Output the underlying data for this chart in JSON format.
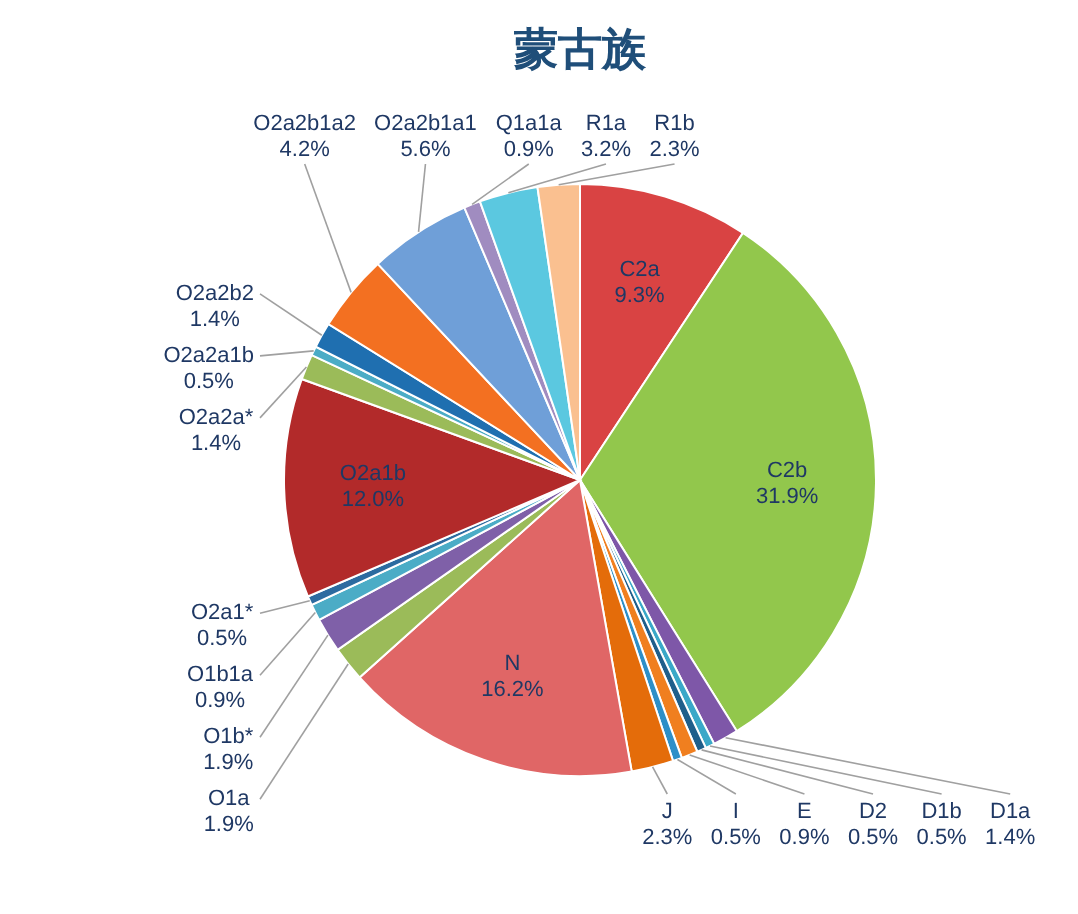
{
  "chart_data": {
    "type": "pie",
    "title": "蒙古族",
    "categories": [
      "C2a",
      "C2b",
      "D1a",
      "D1b",
      "D2",
      "E",
      "I",
      "J",
      "N",
      "O1a",
      "O1b*",
      "O1b1a",
      "O2a1*",
      "O2a1b",
      "O2a2a*",
      "O2a2a1b",
      "O2a2b2",
      "O2a2b1a2",
      "O2a2b1a1",
      "Q1a1a",
      "R1a",
      "R1b"
    ],
    "values": [
      9.3,
      31.9,
      1.4,
      0.5,
      0.5,
      0.9,
      0.5,
      2.3,
      16.2,
      1.9,
      1.9,
      0.9,
      0.5,
      12.0,
      1.4,
      0.5,
      1.4,
      4.2,
      5.6,
      0.9,
      3.2,
      2.3
    ],
    "value_labels": [
      "9.3%",
      "31.9%",
      "1.4%",
      "0.5%",
      "0.5%",
      "0.9%",
      "0.5%",
      "2.3%",
      "16.2%",
      "1.9%",
      "1.9%",
      "0.9%",
      "0.5%",
      "12.0%",
      "1.4%",
      "0.5%",
      "1.4%",
      "4.2%",
      "5.6%",
      "0.9%",
      "3.2%",
      "2.3%"
    ],
    "colors": [
      "#d94343",
      "#92c74c",
      "#7e57a8",
      "#3aa8c8",
      "#1f5f8b",
      "#f07f1f",
      "#2d8fc8",
      "#e46c0a",
      "#e06666",
      "#9bbb59",
      "#7f60a8",
      "#4bacc6",
      "#2c6ba0",
      "#b22a2a",
      "#9bbb59",
      "#4bacc6",
      "#1f6fb0",
      "#f37021",
      "#6f9fd8",
      "#a08cc0",
      "#5bc8e0",
      "#fac090"
    ]
  }
}
